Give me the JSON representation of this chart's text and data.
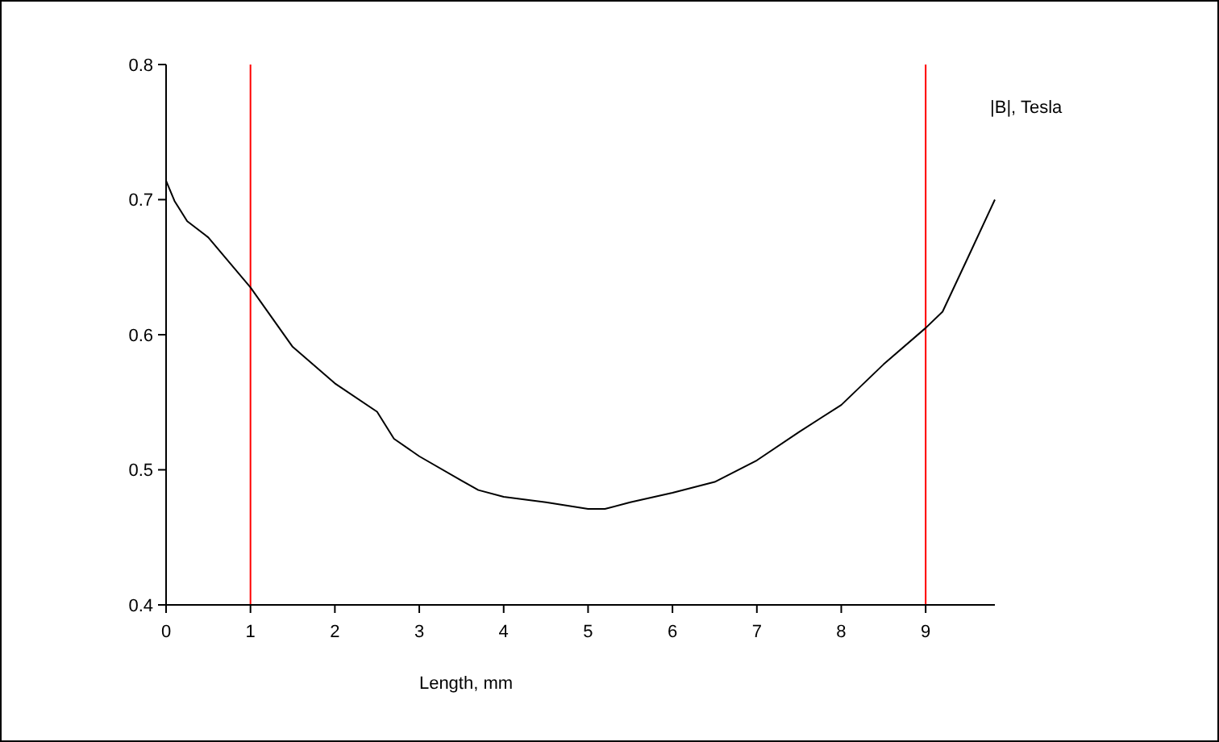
{
  "chart_data": {
    "type": "line",
    "xlabel": "Length, mm",
    "ylabel": "|B|, Tesla",
    "x": [
      0,
      0.1,
      0.25,
      0.5,
      1,
      1.5,
      2,
      2.5,
      2.7,
      3,
      3.5,
      3.7,
      4,
      4.5,
      5,
      5.2,
      5.5,
      6,
      6.5,
      7,
      7.5,
      8,
      8.5,
      9,
      9.2,
      9.5,
      9.82
    ],
    "series": [
      {
        "color": "#000000",
        "values": [
          0.714,
          0.699,
          0.684,
          0.672,
          0.635,
          0.591,
          0.564,
          0.543,
          0.523,
          0.51,
          0.492,
          0.485,
          0.48,
          0.476,
          0.471,
          0.471,
          0.476,
          0.483,
          0.491,
          0.507,
          0.528,
          0.548,
          0.578,
          0.605,
          0.617,
          0.657,
          0.7
        ]
      }
    ],
    "xlim": [
      0,
      9.82
    ],
    "xticks": [
      0,
      1,
      2,
      3,
      4,
      5,
      6,
      7,
      8,
      9
    ],
    "ylim": [
      0.4,
      0.8
    ],
    "yticks": [
      0.4,
      0.5,
      0.6,
      0.7,
      0.8
    ],
    "ref_lines": [
      {
        "axis": "x",
        "value": 1,
        "color": "#ff0000"
      },
      {
        "axis": "x",
        "value": 9,
        "color": "#ff0000"
      }
    ],
    "grid": false
  }
}
